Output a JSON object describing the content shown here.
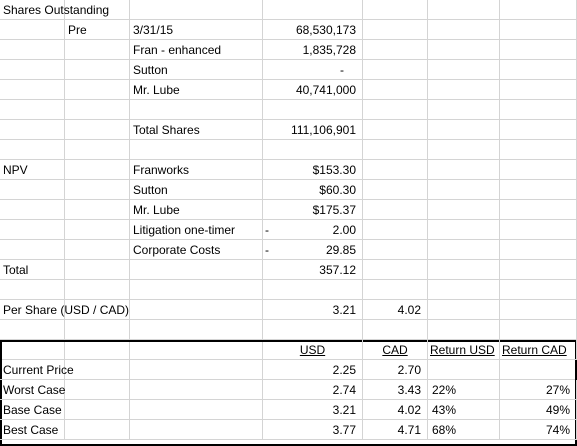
{
  "sheet": {
    "rows": [
      [
        "Shares Outstanding",
        null,
        null,
        null,
        null,
        null,
        null
      ],
      [
        null,
        "Pre",
        "3/31/15",
        "68,530,173",
        null,
        null,
        null
      ],
      [
        null,
        null,
        "Fran - enhanced",
        "1,835,728",
        null,
        null,
        null
      ],
      [
        null,
        null,
        "Sutton",
        "-",
        null,
        null,
        null
      ],
      [
        null,
        null,
        "Mr. Lube",
        "40,741,000",
        null,
        null,
        null
      ],
      [
        null,
        null,
        null,
        null,
        null,
        null,
        null
      ],
      [
        null,
        null,
        "Total Shares",
        "111,106,901",
        null,
        null,
        null
      ],
      [
        null,
        null,
        null,
        null,
        null,
        null,
        null
      ],
      [
        "NPV",
        null,
        "Franworks",
        "$153.30",
        null,
        null,
        null
      ],
      [
        null,
        null,
        "Sutton",
        "$60.30",
        null,
        null,
        null
      ],
      [
        null,
        null,
        "Mr. Lube",
        "$175.37",
        null,
        null,
        null
      ],
      [
        null,
        null,
        "Litigation one-timer",
        {
          "sign": "-",
          "text": "2.00"
        },
        null,
        null,
        null
      ],
      [
        null,
        null,
        "Corporate Costs",
        {
          "sign": "-",
          "text": "29.85"
        },
        null,
        null,
        null
      ],
      [
        "Total",
        null,
        null,
        "357.12",
        null,
        null,
        null
      ],
      [
        null,
        null,
        null,
        null,
        null,
        null,
        null
      ],
      [
        "Per Share (USD / CAD)",
        null,
        null,
        "3.21",
        "4.02",
        null,
        null
      ],
      [
        null,
        null,
        null,
        null,
        null,
        null,
        null
      ],
      [
        null,
        null,
        null,
        "USD",
        "CAD",
        "Return USD",
        "Return CAD"
      ],
      [
        "Current Price",
        null,
        null,
        "2.25",
        "2.70",
        null,
        null
      ],
      [
        "Worst Case",
        null,
        null,
        "2.74",
        "3.43",
        "22%",
        "27%"
      ],
      [
        "Base Case",
        null,
        null,
        "3.21",
        "4.02",
        "43%",
        "49%"
      ],
      [
        "Best Case",
        null,
        null,
        "3.77",
        "4.71",
        "68%",
        "74%"
      ]
    ]
  }
}
